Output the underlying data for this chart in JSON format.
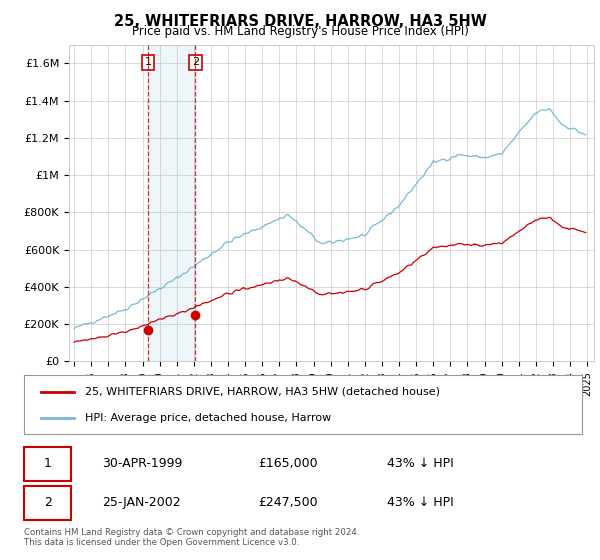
{
  "title": "25, WHITEFRIARS DRIVE, HARROW, HA3 5HW",
  "subtitle": "Price paid vs. HM Land Registry's House Price Index (HPI)",
  "ylim": [
    0,
    1700000
  ],
  "yticks": [
    0,
    200000,
    400000,
    600000,
    800000,
    1000000,
    1200000,
    1400000,
    1600000
  ],
  "ytick_labels": [
    "£0",
    "£200K",
    "£400K",
    "£600K",
    "£800K",
    "£1M",
    "£1.2M",
    "£1.4M",
    "£1.6M"
  ],
  "hpi_color": "#7ab8d8",
  "price_color": "#cc0000",
  "transaction1_date": "30-APR-1999",
  "transaction1_price": 165000,
  "transaction1_hpi_diff": "43% ↓ HPI",
  "transaction1_year": 1999.33,
  "transaction2_date": "25-JAN-2002",
  "transaction2_price": 247500,
  "transaction2_hpi_diff": "43% ↓ HPI",
  "transaction2_year": 2002.08,
  "legend_label1": "25, WHITEFRIARS DRIVE, HARROW, HA3 5HW (detached house)",
  "legend_label2": "HPI: Average price, detached house, Harrow",
  "footer": "Contains HM Land Registry data © Crown copyright and database right 2024.\nThis data is licensed under the Open Government Licence v3.0.",
  "background_color": "#ffffff",
  "plot_bg_color": "#ffffff",
  "grid_color": "#cccccc",
  "box_label_color": "#000000",
  "box_edge_color": "#cc0000"
}
